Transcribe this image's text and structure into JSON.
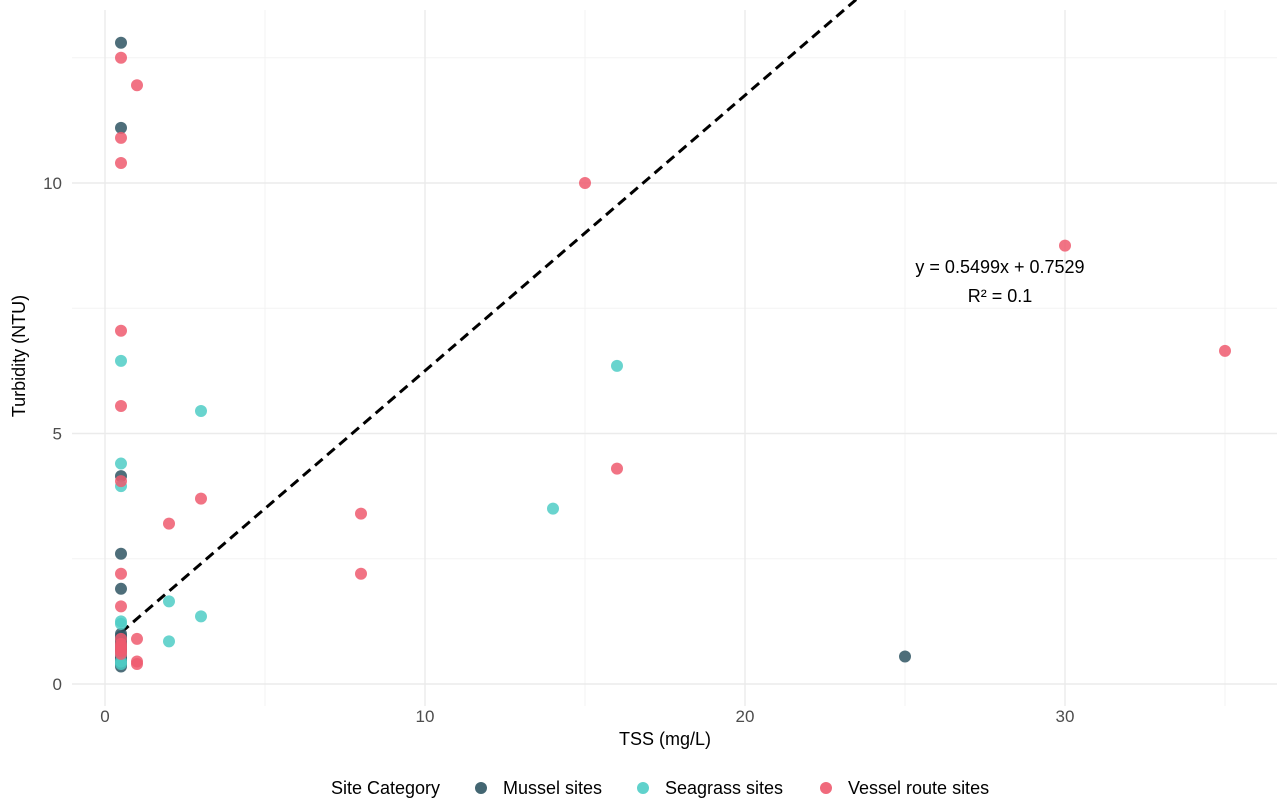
{
  "chart_data": {
    "type": "scatter",
    "title": "",
    "xlabel": "TSS (mg/L)",
    "ylabel": "Turbidity (NTU)",
    "xlim": [
      -1,
      36.5
    ],
    "ylim": [
      -0.2,
      13.5
    ],
    "x_ticks": [
      0,
      10,
      20,
      30
    ],
    "y_ticks": [
      0,
      5,
      10
    ],
    "grid": true,
    "legend": {
      "title": "Site Category",
      "placement": "bottom",
      "entries": [
        "Mussel sites",
        "Seagrass sites",
        "Vessel route sites"
      ]
    },
    "series": [
      {
        "name": "Mussel sites",
        "color": "#2f5563",
        "points": [
          [
            0.5,
            12.8
          ],
          [
            0.5,
            11.1
          ],
          [
            0.5,
            4.15
          ],
          [
            0.5,
            2.6
          ],
          [
            0.5,
            1.9
          ],
          [
            0.5,
            1.0
          ],
          [
            0.5,
            0.95
          ],
          [
            0.5,
            0.9
          ],
          [
            0.5,
            0.85
          ],
          [
            0.5,
            0.8
          ],
          [
            0.5,
            0.75
          ],
          [
            0.5,
            0.7
          ],
          [
            0.5,
            0.65
          ],
          [
            0.5,
            0.6
          ],
          [
            0.5,
            0.55
          ],
          [
            0.5,
            0.5
          ],
          [
            0.5,
            0.45
          ],
          [
            0.5,
            0.4
          ],
          [
            0.5,
            0.35
          ],
          [
            25,
            0.55
          ]
        ]
      },
      {
        "name": "Seagrass sites",
        "color": "#4fcdc6",
        "points": [
          [
            0.5,
            6.45
          ],
          [
            0.5,
            4.4
          ],
          [
            0.5,
            3.95
          ],
          [
            0.5,
            1.25
          ],
          [
            0.5,
            1.2
          ],
          [
            0.5,
            0.6
          ],
          [
            0.5,
            0.45
          ],
          [
            0.5,
            0.4
          ],
          [
            2,
            1.65
          ],
          [
            2,
            0.85
          ],
          [
            3,
            5.45
          ],
          [
            3,
            1.35
          ],
          [
            14,
            3.5
          ],
          [
            16,
            6.35
          ]
        ]
      },
      {
        "name": "Vessel route sites",
        "color": "#ee5a6e",
        "points": [
          [
            0.5,
            12.5
          ],
          [
            0.5,
            10.9
          ],
          [
            0.5,
            10.4
          ],
          [
            0.5,
            7.05
          ],
          [
            0.5,
            5.55
          ],
          [
            0.5,
            4.05
          ],
          [
            0.5,
            2.2
          ],
          [
            0.5,
            1.55
          ],
          [
            0.5,
            0.9
          ],
          [
            0.5,
            0.8
          ],
          [
            0.5,
            0.75
          ],
          [
            0.5,
            0.7
          ],
          [
            0.5,
            0.65
          ],
          [
            0.5,
            0.6
          ],
          [
            1,
            11.95
          ],
          [
            1,
            0.9
          ],
          [
            1,
            0.45
          ],
          [
            1,
            0.4
          ],
          [
            2,
            3.2
          ],
          [
            3,
            3.7
          ],
          [
            8,
            3.4
          ],
          [
            8,
            2.2
          ],
          [
            15,
            10.0
          ],
          [
            16,
            4.3
          ],
          [
            30,
            8.75
          ],
          [
            35,
            6.65
          ]
        ]
      }
    ],
    "trendline": {
      "slope": 0.5499,
      "intercept": 0.7529,
      "x_range": [
        0.5,
        35
      ],
      "style": "dashed",
      "color": "#000000"
    },
    "annotations": {
      "equation": "y = 0.5499x + 0.7529",
      "r_squared": "R² = 0.1"
    }
  }
}
